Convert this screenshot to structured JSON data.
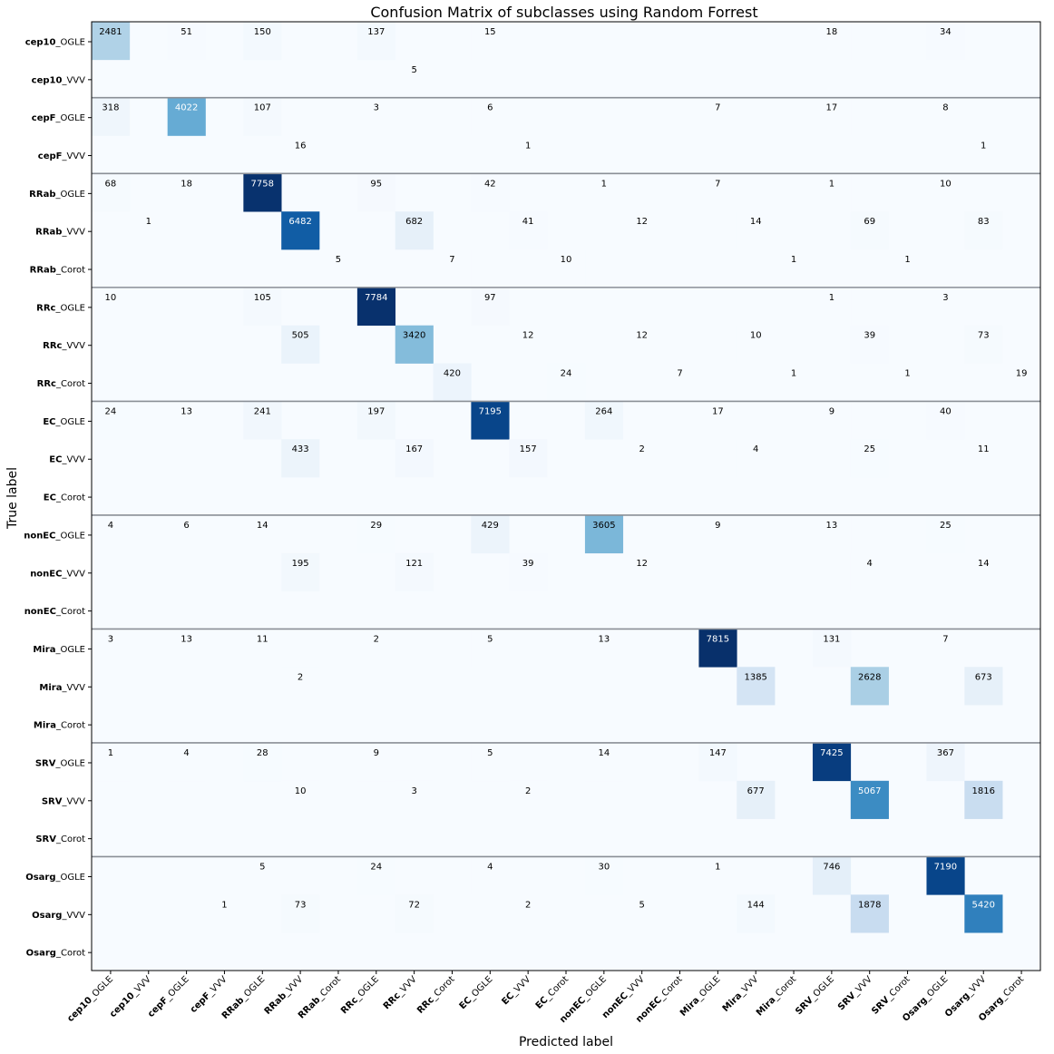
{
  "chart_data": {
    "type": "heatmap",
    "title": "Confusion Matrix of subclasses using Random Forrest",
    "xlabel": "Predicted label",
    "ylabel": "True label",
    "colormap": "Blues",
    "grid": false,
    "labels": [
      {
        "bold": "cep10",
        "rest": "_OGLE"
      },
      {
        "bold": "cep10",
        "rest": "_VVV"
      },
      {
        "bold": "cepF",
        "rest": "_OGLE"
      },
      {
        "bold": "cepF",
        "rest": "_VVV"
      },
      {
        "bold": "RRab",
        "rest": "_OGLE"
      },
      {
        "bold": "RRab",
        "rest": "_VVV"
      },
      {
        "bold": "RRab",
        "rest": "_Corot"
      },
      {
        "bold": "RRc",
        "rest": "_OGLE"
      },
      {
        "bold": "RRc",
        "rest": "_VVV"
      },
      {
        "bold": "RRc",
        "rest": "_Corot"
      },
      {
        "bold": "EC",
        "rest": "_OGLE"
      },
      {
        "bold": "EC",
        "rest": "_VVV"
      },
      {
        "bold": "EC",
        "rest": "_Corot"
      },
      {
        "bold": "nonEC",
        "rest": "_OGLE"
      },
      {
        "bold": "nonEC",
        "rest": "_VVV"
      },
      {
        "bold": "nonEC",
        "rest": "_Corot"
      },
      {
        "bold": "Mira",
        "rest": "_OGLE"
      },
      {
        "bold": "Mira",
        "rest": "_VVV"
      },
      {
        "bold": "Mira",
        "rest": "_Corot"
      },
      {
        "bold": "SRV",
        "rest": "_OGLE"
      },
      {
        "bold": "SRV",
        "rest": "_VVV"
      },
      {
        "bold": "SRV",
        "rest": "_Corot"
      },
      {
        "bold": "Osarg",
        "rest": "_OGLE"
      },
      {
        "bold": "Osarg",
        "rest": "_VVV"
      },
      {
        "bold": "Osarg",
        "rest": "_Corot"
      }
    ],
    "group_separators_after_row": [
      1,
      3,
      6,
      9,
      12,
      15,
      18,
      21
    ],
    "max_value": 7815,
    "cells": [
      [
        0,
        0,
        2481
      ],
      [
        0,
        2,
        51
      ],
      [
        0,
        4,
        150
      ],
      [
        0,
        7,
        137
      ],
      [
        0,
        10,
        15
      ],
      [
        0,
        19,
        18
      ],
      [
        0,
        22,
        34
      ],
      [
        1,
        8,
        5
      ],
      [
        2,
        0,
        318
      ],
      [
        2,
        2,
        4022
      ],
      [
        2,
        4,
        107
      ],
      [
        2,
        7,
        3
      ],
      [
        2,
        10,
        6
      ],
      [
        2,
        16,
        7
      ],
      [
        2,
        19,
        17
      ],
      [
        2,
        22,
        8
      ],
      [
        3,
        5,
        16
      ],
      [
        3,
        11,
        1
      ],
      [
        3,
        23,
        1
      ],
      [
        4,
        0,
        68
      ],
      [
        4,
        2,
        18
      ],
      [
        4,
        4,
        7758
      ],
      [
        4,
        7,
        95
      ],
      [
        4,
        10,
        42
      ],
      [
        4,
        13,
        1
      ],
      [
        4,
        16,
        7
      ],
      [
        4,
        19,
        1
      ],
      [
        4,
        22,
        10
      ],
      [
        5,
        1,
        1
      ],
      [
        5,
        5,
        6482
      ],
      [
        5,
        8,
        682
      ],
      [
        5,
        11,
        41
      ],
      [
        5,
        14,
        12
      ],
      [
        5,
        17,
        14
      ],
      [
        5,
        20,
        69
      ],
      [
        5,
        23,
        83
      ],
      [
        6,
        6,
        5
      ],
      [
        6,
        9,
        7
      ],
      [
        6,
        12,
        10
      ],
      [
        6,
        18,
        1
      ],
      [
        6,
        21,
        1
      ],
      [
        7,
        0,
        10
      ],
      [
        7,
        4,
        105
      ],
      [
        7,
        7,
        7784
      ],
      [
        7,
        10,
        97
      ],
      [
        7,
        19,
        1
      ],
      [
        7,
        22,
        3
      ],
      [
        8,
        5,
        505
      ],
      [
        8,
        8,
        3420
      ],
      [
        8,
        11,
        12
      ],
      [
        8,
        14,
        12
      ],
      [
        8,
        17,
        10
      ],
      [
        8,
        20,
        39
      ],
      [
        8,
        23,
        73
      ],
      [
        9,
        9,
        420
      ],
      [
        9,
        12,
        24
      ],
      [
        9,
        15,
        7
      ],
      [
        9,
        18,
        1
      ],
      [
        9,
        21,
        1
      ],
      [
        9,
        24,
        19
      ],
      [
        10,
        0,
        24
      ],
      [
        10,
        2,
        13
      ],
      [
        10,
        4,
        241
      ],
      [
        10,
        7,
        197
      ],
      [
        10,
        10,
        7195
      ],
      [
        10,
        13,
        264
      ],
      [
        10,
        16,
        17
      ],
      [
        10,
        19,
        9
      ],
      [
        10,
        22,
        40
      ],
      [
        11,
        5,
        433
      ],
      [
        11,
        8,
        167
      ],
      [
        11,
        11,
        157
      ],
      [
        11,
        14,
        2
      ],
      [
        11,
        17,
        4
      ],
      [
        11,
        20,
        25
      ],
      [
        11,
        23,
        11
      ],
      [
        13,
        0,
        4
      ],
      [
        13,
        2,
        6
      ],
      [
        13,
        4,
        14
      ],
      [
        13,
        7,
        29
      ],
      [
        13,
        10,
        429
      ],
      [
        13,
        13,
        3605
      ],
      [
        13,
        16,
        9
      ],
      [
        13,
        19,
        13
      ],
      [
        13,
        22,
        25
      ],
      [
        14,
        5,
        195
      ],
      [
        14,
        8,
        121
      ],
      [
        14,
        11,
        39
      ],
      [
        14,
        14,
        12
      ],
      [
        14,
        20,
        4
      ],
      [
        14,
        23,
        14
      ],
      [
        16,
        0,
        3
      ],
      [
        16,
        2,
        13
      ],
      [
        16,
        4,
        11
      ],
      [
        16,
        7,
        2
      ],
      [
        16,
        10,
        5
      ],
      [
        16,
        13,
        13
      ],
      [
        16,
        16,
        7815
      ],
      [
        16,
        19,
        131
      ],
      [
        16,
        22,
        7
      ],
      [
        17,
        5,
        2
      ],
      [
        17,
        17,
        1385
      ],
      [
        17,
        20,
        2628
      ],
      [
        17,
        23,
        673
      ],
      [
        19,
        0,
        1
      ],
      [
        19,
        2,
        4
      ],
      [
        19,
        4,
        28
      ],
      [
        19,
        7,
        9
      ],
      [
        19,
        10,
        5
      ],
      [
        19,
        13,
        14
      ],
      [
        19,
        16,
        147
      ],
      [
        19,
        19,
        7425
      ],
      [
        19,
        22,
        367
      ],
      [
        20,
        5,
        10
      ],
      [
        20,
        8,
        3
      ],
      [
        20,
        11,
        2
      ],
      [
        20,
        17,
        677
      ],
      [
        20,
        20,
        5067
      ],
      [
        20,
        23,
        1816
      ],
      [
        22,
        4,
        5
      ],
      [
        22,
        7,
        24
      ],
      [
        22,
        10,
        4
      ],
      [
        22,
        13,
        30
      ],
      [
        22,
        16,
        1
      ],
      [
        22,
        19,
        746
      ],
      [
        22,
        22,
        7190
      ],
      [
        23,
        3,
        1
      ],
      [
        23,
        5,
        73
      ],
      [
        23,
        8,
        72
      ],
      [
        23,
        11,
        2
      ],
      [
        23,
        14,
        5
      ],
      [
        23,
        17,
        144
      ],
      [
        23,
        20,
        1878
      ],
      [
        23,
        23,
        5420
      ]
    ]
  }
}
